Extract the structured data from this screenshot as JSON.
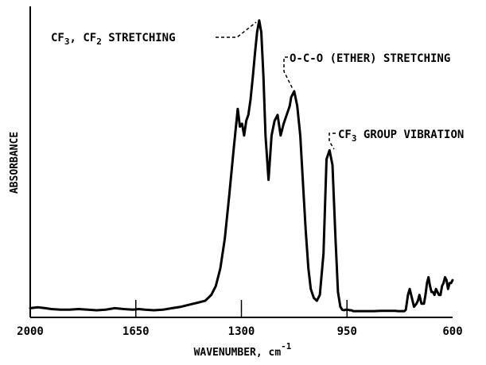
{
  "chart_data": {
    "type": "line",
    "title": "",
    "xlabel": "WAVENUMBER, cm",
    "xlabel_exponent": "-1",
    "ylabel": "ABSORBANCE",
    "x_reversed": true,
    "xlim": [
      2000,
      600
    ],
    "ylim": [
      0,
      1
    ],
    "xticks": [
      2000,
      1650,
      1300,
      950,
      600
    ],
    "xtick_labels": [
      "2000",
      "1650",
      "1300",
      "950",
      "600"
    ],
    "grid": false,
    "legend": "none",
    "line_color": "#000000",
    "series": [
      {
        "x": [
          2000,
          1975,
          1950,
          1930,
          1900,
          1870,
          1840,
          1810,
          1780,
          1750,
          1720,
          1690,
          1660,
          1640,
          1620,
          1590,
          1560,
          1530,
          1500,
          1480,
          1460,
          1440,
          1420,
          1400,
          1385,
          1370,
          1355,
          1340,
          1325,
          1312,
          1305,
          1298,
          1291,
          1284,
          1277,
          1270,
          1262,
          1255,
          1248,
          1241,
          1234,
          1227,
          1220,
          1210,
          1200,
          1190,
          1180,
          1170,
          1160,
          1150,
          1140,
          1135,
          1125,
          1115,
          1105,
          1095,
          1087,
          1078,
          1070,
          1060,
          1050,
          1040,
          1028,
          1018,
          1008,
          998,
          988,
          980,
          972,
          966,
          960,
          954,
          948,
          940,
          935,
          930,
          920,
          900,
          880,
          860,
          840,
          820,
          800,
          790,
          780,
          770,
          760,
          755,
          748,
          742,
          735,
          728,
          720,
          715,
          710,
          703,
          695,
          690,
          685,
          680,
          675,
          670,
          665,
          660,
          655,
          650,
          645,
          640,
          635,
          630,
          625,
          620,
          615,
          610,
          605,
          600
        ],
        "y": [
          0.015,
          0.018,
          0.015,
          0.012,
          0.01,
          0.01,
          0.012,
          0.01,
          0.008,
          0.01,
          0.015,
          0.012,
          0.01,
          0.012,
          0.01,
          0.008,
          0.01,
          0.015,
          0.02,
          0.025,
          0.03,
          0.035,
          0.04,
          0.06,
          0.09,
          0.15,
          0.25,
          0.4,
          0.56,
          0.69,
          0.63,
          0.64,
          0.6,
          0.65,
          0.67,
          0.72,
          0.8,
          0.88,
          0.95,
          0.99,
          0.95,
          0.8,
          0.6,
          0.45,
          0.6,
          0.65,
          0.67,
          0.6,
          0.64,
          0.67,
          0.7,
          0.73,
          0.75,
          0.7,
          0.6,
          0.42,
          0.28,
          0.15,
          0.08,
          0.05,
          0.04,
          0.06,
          0.2,
          0.52,
          0.55,
          0.5,
          0.25,
          0.07,
          0.02,
          0.01,
          0.008,
          0.01,
          0.01,
          0.008,
          0.008,
          0.005,
          0.005,
          0.005,
          0.005,
          0.005,
          0.006,
          0.006,
          0.006,
          0.006,
          0.005,
          0.005,
          0.005,
          0.01,
          0.06,
          0.08,
          0.05,
          0.02,
          0.03,
          0.04,
          0.06,
          0.03,
          0.03,
          0.06,
          0.1,
          0.12,
          0.09,
          0.07,
          0.07,
          0.06,
          0.08,
          0.07,
          0.06,
          0.06,
          0.09,
          0.1,
          0.12,
          0.11,
          0.08,
          0.1,
          0.1,
          0.11
        ]
      }
    ],
    "annotations": [
      {
        "text_main": "CF",
        "sub1": "3",
        "text_mid": ", CF",
        "sub2": "2",
        "text_end": " STRETCHING",
        "x": 1225,
        "y": 0.99
      },
      {
        "text_main": "O-C-O (ETHER) STRETCHING",
        "x": 1125,
        "y": 0.75
      },
      {
        "text_main": "CF",
        "sub1": "3",
        "text_end": " GROUP VIBRATION",
        "x": 1018,
        "y": 0.55
      }
    ]
  }
}
